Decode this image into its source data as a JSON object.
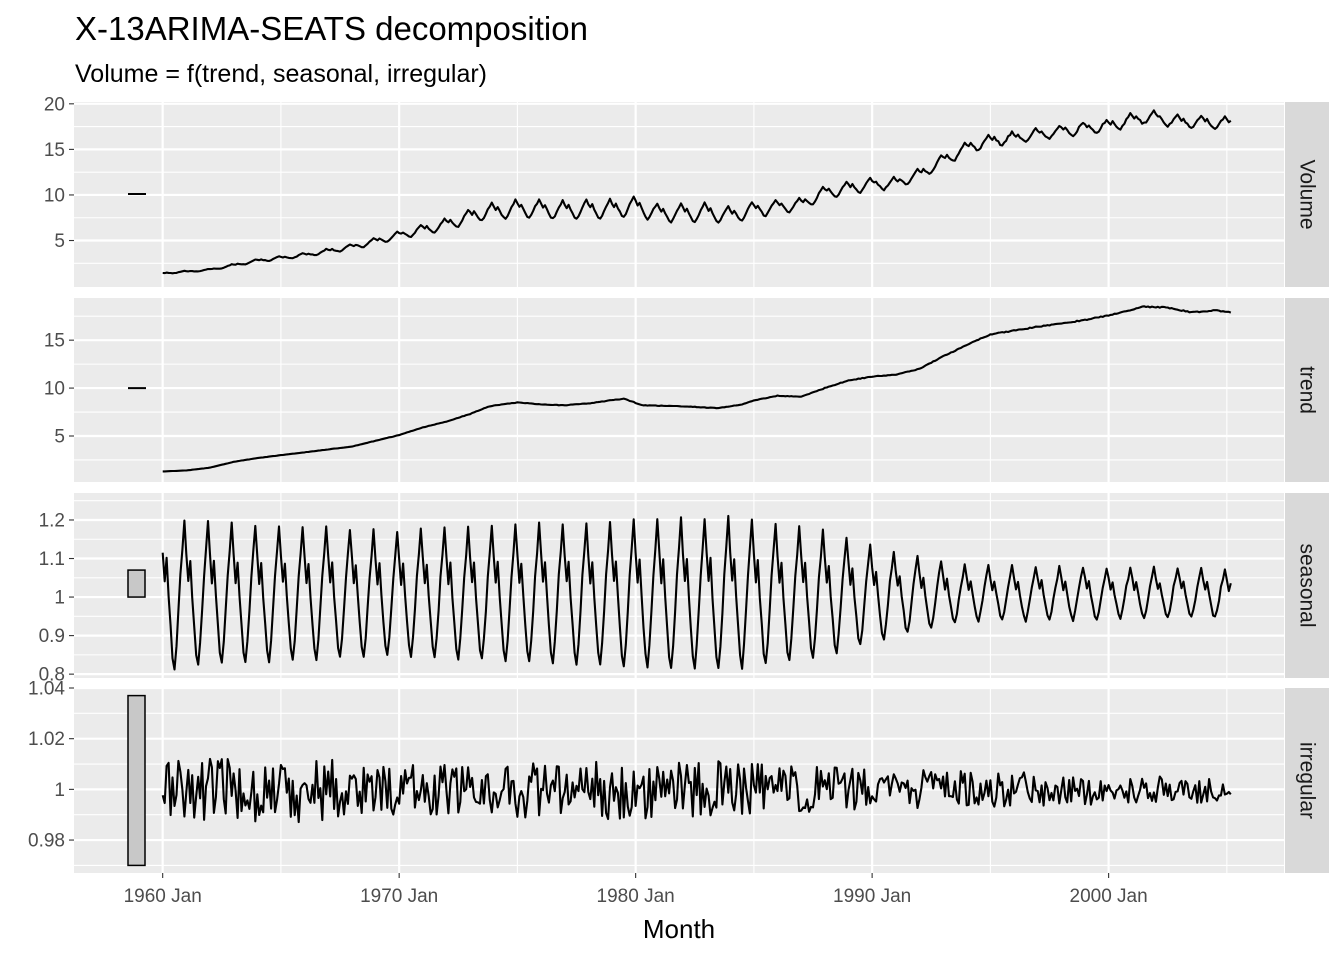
{
  "chart_data": {
    "type": "line",
    "title": "X-13ARIMA-SEATS decomposition",
    "subtitle": "Volume = f(trend, seasonal, irregular)",
    "xlabel": "Month",
    "x_ticks": [
      "1960 Jan",
      "1970 Jan",
      "1980 Jan",
      "1990 Jan",
      "2000 Jan"
    ],
    "x_range": [
      "1956 Apr",
      "2007 Jun"
    ],
    "x_start": "1960 Jan",
    "x_end": "2005 Mar",
    "grid": true,
    "panels": [
      {
        "name": "Volume",
        "y_ticks": [
          5,
          10,
          15,
          20
        ],
        "ylim": [
          -0.1,
          20.2
        ],
        "scale_bar": [
          10.1,
          10.1
        ],
        "anchors": [
          [
            1960.0,
            1.4
          ],
          [
            1962.0,
            1.8
          ],
          [
            1964.0,
            2.8
          ],
          [
            1966.0,
            3.4
          ],
          [
            1968.0,
            4.3
          ],
          [
            1970.0,
            5.6
          ],
          [
            1972.0,
            6.8
          ],
          [
            1973.5,
            8.1
          ],
          [
            1975.0,
            8.5
          ],
          [
            1977.0,
            8.4
          ],
          [
            1979.0,
            8.5
          ],
          [
            1980.0,
            8.8
          ],
          [
            1981.0,
            8.0
          ],
          [
            1983.0,
            8.1
          ],
          [
            1984.0,
            7.8
          ],
          [
            1985.0,
            8.4
          ],
          [
            1987.0,
            9.0
          ],
          [
            1988.0,
            10.3
          ],
          [
            1990.0,
            11.2
          ],
          [
            1991.0,
            11.3
          ],
          [
            1992.0,
            12.3
          ],
          [
            1993.0,
            13.8
          ],
          [
            1994.0,
            15.2
          ],
          [
            1995.0,
            16.0
          ],
          [
            1996.0,
            16.3
          ],
          [
            1998.0,
            17.0
          ],
          [
            2000.0,
            17.6
          ],
          [
            2001.5,
            18.6
          ],
          [
            2003.0,
            18.1
          ],
          [
            2005.25,
            17.9
          ]
        ],
        "seasonal_amplitude": [
          [
            1960.0,
            0.05
          ],
          [
            1969.0,
            0.07
          ],
          [
            1975.0,
            0.12
          ],
          [
            1983.0,
            0.13
          ],
          [
            1988.0,
            0.07
          ],
          [
            1995.0,
            0.04
          ],
          [
            2005.25,
            0.04
          ]
        ],
        "noise_amplitude": [
          [
            1960.0,
            0.01
          ],
          [
            2005.25,
            0.005
          ]
        ]
      },
      {
        "name": "trend",
        "y_ticks": [
          5,
          10,
          15
        ],
        "ylim": [
          0.2,
          19.4
        ],
        "scale_bar": [
          10.0,
          10.0
        ],
        "anchors": [
          [
            1960.0,
            1.3
          ],
          [
            1961.0,
            1.4
          ],
          [
            1962.0,
            1.7
          ],
          [
            1963.0,
            2.3
          ],
          [
            1964.0,
            2.7
          ],
          [
            1966.0,
            3.3
          ],
          [
            1968.0,
            3.9
          ],
          [
            1970.0,
            5.1
          ],
          [
            1971.0,
            5.9
          ],
          [
            1972.0,
            6.5
          ],
          [
            1973.0,
            7.3
          ],
          [
            1973.8,
            8.1
          ],
          [
            1975.0,
            8.5
          ],
          [
            1976.0,
            8.3
          ],
          [
            1977.0,
            8.2
          ],
          [
            1978.0,
            8.4
          ],
          [
            1979.5,
            8.9
          ],
          [
            1980.3,
            8.2
          ],
          [
            1982.0,
            8.1
          ],
          [
            1983.5,
            7.9
          ],
          [
            1984.5,
            8.3
          ],
          [
            1985.0,
            8.7
          ],
          [
            1986.0,
            9.2
          ],
          [
            1987.0,
            9.1
          ],
          [
            1988.0,
            10.0
          ],
          [
            1989.0,
            10.8
          ],
          [
            1990.0,
            11.2
          ],
          [
            1991.0,
            11.4
          ],
          [
            1992.0,
            12.0
          ],
          [
            1993.0,
            13.3
          ],
          [
            1994.0,
            14.5
          ],
          [
            1995.0,
            15.6
          ],
          [
            1997.0,
            16.4
          ],
          [
            1999.0,
            17.1
          ],
          [
            2000.0,
            17.6
          ],
          [
            2001.5,
            18.5
          ],
          [
            2002.5,
            18.4
          ],
          [
            2003.5,
            17.9
          ],
          [
            2004.5,
            18.1
          ],
          [
            2005.25,
            17.9
          ]
        ],
        "seasonal_amplitude": [
          [
            1960.0,
            0.0
          ],
          [
            2005.25,
            0.0
          ]
        ],
        "noise_amplitude": [
          [
            1960.0,
            0.003
          ],
          [
            2005.25,
            0.003
          ]
        ]
      },
      {
        "name": "seasonal",
        "y_ticks": [
          0.8,
          0.9,
          1.0,
          1.1,
          1.2
        ],
        "ylim": [
          0.79,
          1.27
        ],
        "scale_bar": [
          1.0,
          1.07
        ],
        "anchors": [
          [
            1960.0,
            1.01
          ],
          [
            2005.25,
            1.01
          ]
        ],
        "seasonal_amplitude": [
          [
            1960.0,
            0.22
          ],
          [
            1963.0,
            0.2
          ],
          [
            1970.0,
            0.18
          ],
          [
            1976.0,
            0.2
          ],
          [
            1980.0,
            0.21
          ],
          [
            1984.0,
            0.22
          ],
          [
            1988.0,
            0.18
          ],
          [
            1991.0,
            0.12
          ],
          [
            1994.0,
            0.08
          ],
          [
            2005.25,
            0.07
          ]
        ],
        "noise_amplitude": [
          [
            1960.0,
            0.004
          ],
          [
            2005.25,
            0.004
          ]
        ]
      },
      {
        "name": "irregular",
        "y_ticks": [
          0.98,
          1.0,
          1.02,
          1.04
        ],
        "ylim": [
          0.967,
          1.04
        ],
        "scale_bar": [
          0.97,
          1.037
        ],
        "anchors": [
          [
            1960.0,
            1.0
          ],
          [
            2005.25,
            1.0
          ]
        ],
        "seasonal_amplitude": [
          [
            1960.0,
            0.0
          ],
          [
            2005.25,
            0.0
          ]
        ],
        "noise_amplitude": [
          [
            1960.0,
            0.013
          ],
          [
            1966.0,
            0.013
          ],
          [
            1970.0,
            0.01
          ],
          [
            1980.0,
            0.012
          ],
          [
            1984.0,
            0.011
          ],
          [
            1990.0,
            0.008
          ],
          [
            2000.0,
            0.006
          ],
          [
            2005.25,
            0.005
          ]
        ]
      }
    ],
    "colors": {
      "panel_bg": "#ebebeb",
      "grid": "#ffffff",
      "strip_bg": "#d9d9d9",
      "line": "#000000",
      "scale_bar_fill": "#c8c8c8"
    }
  }
}
